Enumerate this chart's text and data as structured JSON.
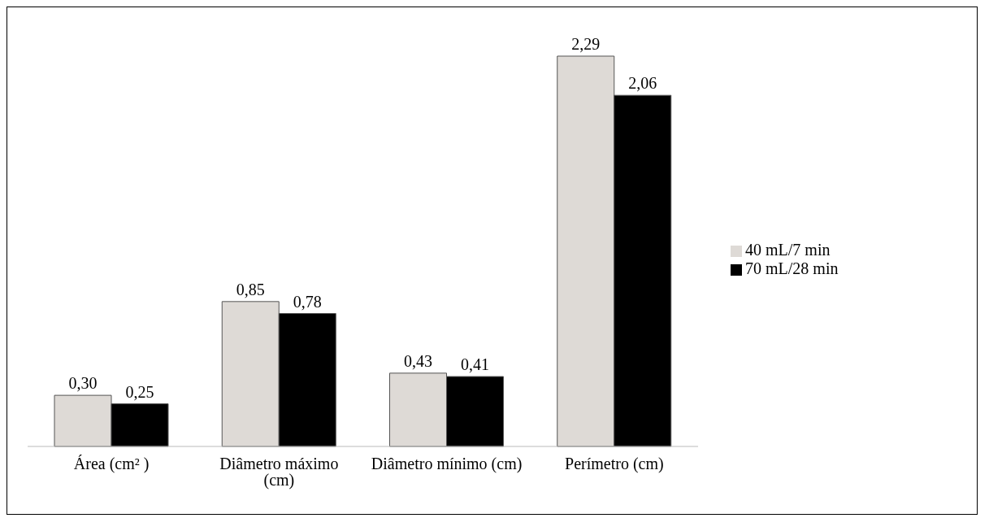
{
  "chart_data": {
    "type": "bar",
    "categories": [
      "Área (cm² )",
      "Diâmetro máximo (cm)",
      "Diâmetro mínimo (cm)",
      "Perímetro (cm)"
    ],
    "series": [
      {
        "name": "40 mL/7 min",
        "color": "#dedad6",
        "values": [
          0.3,
          0.85,
          0.43,
          2.29
        ],
        "value_labels": [
          "0,30",
          "0,85",
          "0,43",
          "2,29"
        ]
      },
      {
        "name": "70 mL/28 min",
        "color": "#000000",
        "values": [
          0.25,
          0.78,
          0.41,
          2.06
        ],
        "value_labels": [
          "0,25",
          "0,78",
          "0,41",
          "2,06"
        ]
      }
    ],
    "legend": "right",
    "grid": false
  }
}
